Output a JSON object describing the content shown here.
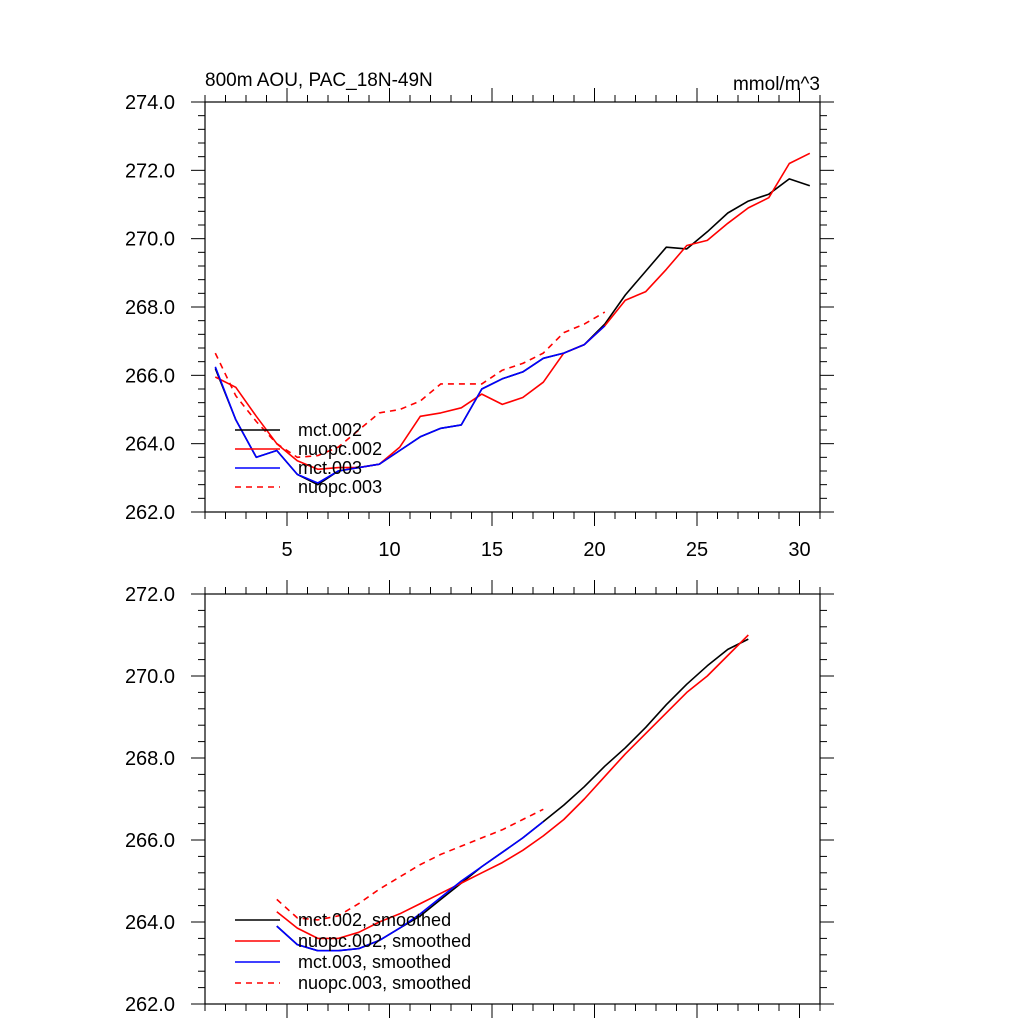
{
  "chart_data": [
    {
      "type": "line",
      "title": "800m AOU, PAC_18N-49N",
      "units": "mmol/m^3",
      "xlim": [
        1,
        31
      ],
      "ylim": [
        262,
        274
      ],
      "xticks": [
        5,
        10,
        15,
        20,
        25,
        30
      ],
      "xtick_labels": [
        "5",
        "10",
        "15",
        "20",
        "25",
        "30"
      ],
      "yticks": [
        262,
        264,
        266,
        268,
        270,
        272,
        274
      ],
      "ytick_labels": [
        "262.0",
        "264.0",
        "266.0",
        "268.0",
        "270.0",
        "272.0",
        "274.0"
      ],
      "legend_position": "lower-left",
      "series": [
        {
          "name": "mct.002",
          "color": "#000000",
          "dash": "solid",
          "x": [
            1.5,
            2.5,
            3.5,
            4.5,
            5.5,
            6.5,
            7.5,
            8.5,
            9.5,
            10.5,
            11.5,
            12.5,
            13.5,
            14.5,
            15.5,
            16.5,
            17.5,
            18.5,
            19.5,
            20.5,
            21.5,
            22.5,
            23.5,
            24.5,
            25.5,
            26.5,
            27.5,
            28.5,
            29.5,
            30.5
          ],
          "y": [
            266.2,
            264.7,
            263.6,
            263.8,
            263.1,
            262.8,
            263.2,
            263.3,
            263.4,
            263.8,
            264.2,
            264.45,
            264.55,
            265.6,
            265.9,
            266.1,
            266.5,
            266.65,
            266.9,
            267.5,
            268.35,
            269.05,
            269.75,
            269.7,
            270.2,
            270.75,
            271.1,
            271.3,
            271.75,
            271.55
          ]
        },
        {
          "name": "nuopc.002",
          "color": "#ff0000",
          "dash": "solid",
          "x": [
            1.5,
            2.5,
            3.5,
            4.5,
            5.5,
            6.5,
            7.5,
            8.5,
            9.5,
            10.5,
            11.5,
            12.5,
            13.5,
            14.5,
            15.5,
            16.5,
            17.5,
            18.5,
            19.5,
            20.5,
            21.5,
            22.5,
            23.5,
            24.5,
            25.5,
            26.5,
            27.5,
            28.5,
            29.5,
            30.5
          ],
          "y": [
            265.95,
            265.65,
            264.8,
            264.0,
            263.5,
            263.25,
            263.3,
            263.3,
            263.4,
            263.9,
            264.8,
            264.9,
            265.05,
            265.45,
            265.15,
            265.35,
            265.8,
            266.65,
            266.9,
            267.45,
            268.2,
            268.45,
            269.1,
            269.8,
            269.95,
            270.45,
            270.9,
            271.2,
            272.2,
            272.5
          ]
        },
        {
          "name": "mct.003",
          "color": "#0000ff",
          "dash": "solid",
          "x": [
            1.5,
            2.5,
            3.5,
            4.5,
            5.5,
            6.5,
            7.5,
            8.5,
            9.5,
            10.5,
            11.5,
            12.5,
            13.5,
            14.5,
            15.5,
            16.5,
            17.5,
            18.5,
            19.5,
            20.5
          ],
          "y": [
            266.25,
            264.7,
            263.6,
            263.8,
            263.1,
            262.85,
            263.2,
            263.3,
            263.4,
            263.8,
            264.2,
            264.45,
            264.55,
            265.6,
            265.9,
            266.1,
            266.5,
            266.65,
            266.9,
            267.45
          ]
        },
        {
          "name": "nuopc.003",
          "color": "#ff0000",
          "dash": "dashed",
          "x": [
            1.5,
            2.5,
            3.5,
            4.5,
            5.5,
            6.5,
            7.5,
            8.5,
            9.5,
            10.5,
            11.5,
            12.5,
            13.5,
            14.5,
            15.5,
            16.5,
            17.5,
            18.5,
            19.5,
            20.5
          ],
          "y": [
            266.65,
            265.4,
            264.65,
            264.0,
            263.6,
            263.65,
            263.9,
            264.4,
            264.9,
            265.0,
            265.25,
            265.75,
            265.75,
            265.75,
            266.15,
            266.35,
            266.65,
            267.25,
            267.5,
            267.85
          ]
        }
      ]
    },
    {
      "type": "line",
      "title": "",
      "units": "",
      "xlim": [
        1,
        31
      ],
      "ylim": [
        262,
        272
      ],
      "xticks": [
        5,
        10,
        15,
        20,
        25,
        30
      ],
      "xtick_labels": [
        "5",
        "10",
        "15",
        "20",
        "25",
        "30"
      ],
      "yticks": [
        262,
        264,
        266,
        268,
        270,
        272
      ],
      "ytick_labels": [
        "262.0",
        "264.0",
        "266.0",
        "268.0",
        "270.0",
        "272.0"
      ],
      "legend_position": "lower-left",
      "series": [
        {
          "name": "mct.002, smoothed",
          "color": "#000000",
          "dash": "solid",
          "x": [
            4.5,
            5.5,
            6.5,
            7.5,
            8.5,
            9.5,
            10.5,
            11.5,
            12.5,
            13.5,
            14.5,
            15.5,
            16.5,
            17.5,
            18.5,
            19.5,
            20.5,
            21.5,
            22.5,
            23.5,
            24.5,
            25.5,
            26.5,
            27.5
          ],
          "y": [
            263.9,
            263.45,
            263.3,
            263.3,
            263.35,
            263.55,
            263.85,
            264.15,
            264.55,
            264.95,
            265.35,
            265.7,
            266.05,
            266.45,
            266.85,
            267.3,
            267.8,
            268.25,
            268.75,
            269.3,
            269.8,
            270.25,
            270.65,
            270.9
          ]
        },
        {
          "name": "nuopc.002, smoothed",
          "color": "#ff0000",
          "dash": "solid",
          "x": [
            4.5,
            5.5,
            6.5,
            7.5,
            8.5,
            9.5,
            10.5,
            11.5,
            12.5,
            13.5,
            14.5,
            15.5,
            16.5,
            17.5,
            18.5,
            19.5,
            20.5,
            21.5,
            22.5,
            23.5,
            24.5,
            25.5,
            26.5,
            27.5
          ],
          "y": [
            264.25,
            263.85,
            263.6,
            263.6,
            263.75,
            264.0,
            264.2,
            264.45,
            264.7,
            264.95,
            265.2,
            265.45,
            265.75,
            266.1,
            266.5,
            267.0,
            267.55,
            268.1,
            268.6,
            269.1,
            269.6,
            270.0,
            270.5,
            271.0
          ]
        },
        {
          "name": "mct.003, smoothed",
          "color": "#0000ff",
          "dash": "solid",
          "x": [
            4.5,
            5.5,
            6.5,
            7.5,
            8.5,
            9.5,
            10.5,
            11.5,
            12.5,
            13.5,
            14.5,
            15.5,
            16.5,
            17.5
          ],
          "y": [
            263.9,
            263.45,
            263.3,
            263.3,
            263.35,
            263.55,
            263.85,
            264.2,
            264.6,
            265.0,
            265.35,
            265.7,
            266.05,
            266.45
          ]
        },
        {
          "name": "nuopc.003, smoothed",
          "color": "#ff0000",
          "dash": "dashed",
          "x": [
            4.5,
            5.5,
            6.5,
            7.5,
            8.5,
            9.5,
            10.5,
            11.5,
            12.5,
            13.5,
            14.5,
            15.5,
            16.5,
            17.5
          ],
          "y": [
            264.55,
            264.1,
            264.05,
            264.15,
            264.45,
            264.8,
            265.1,
            265.4,
            265.65,
            265.85,
            266.05,
            266.25,
            266.5,
            266.75
          ]
        }
      ]
    }
  ]
}
